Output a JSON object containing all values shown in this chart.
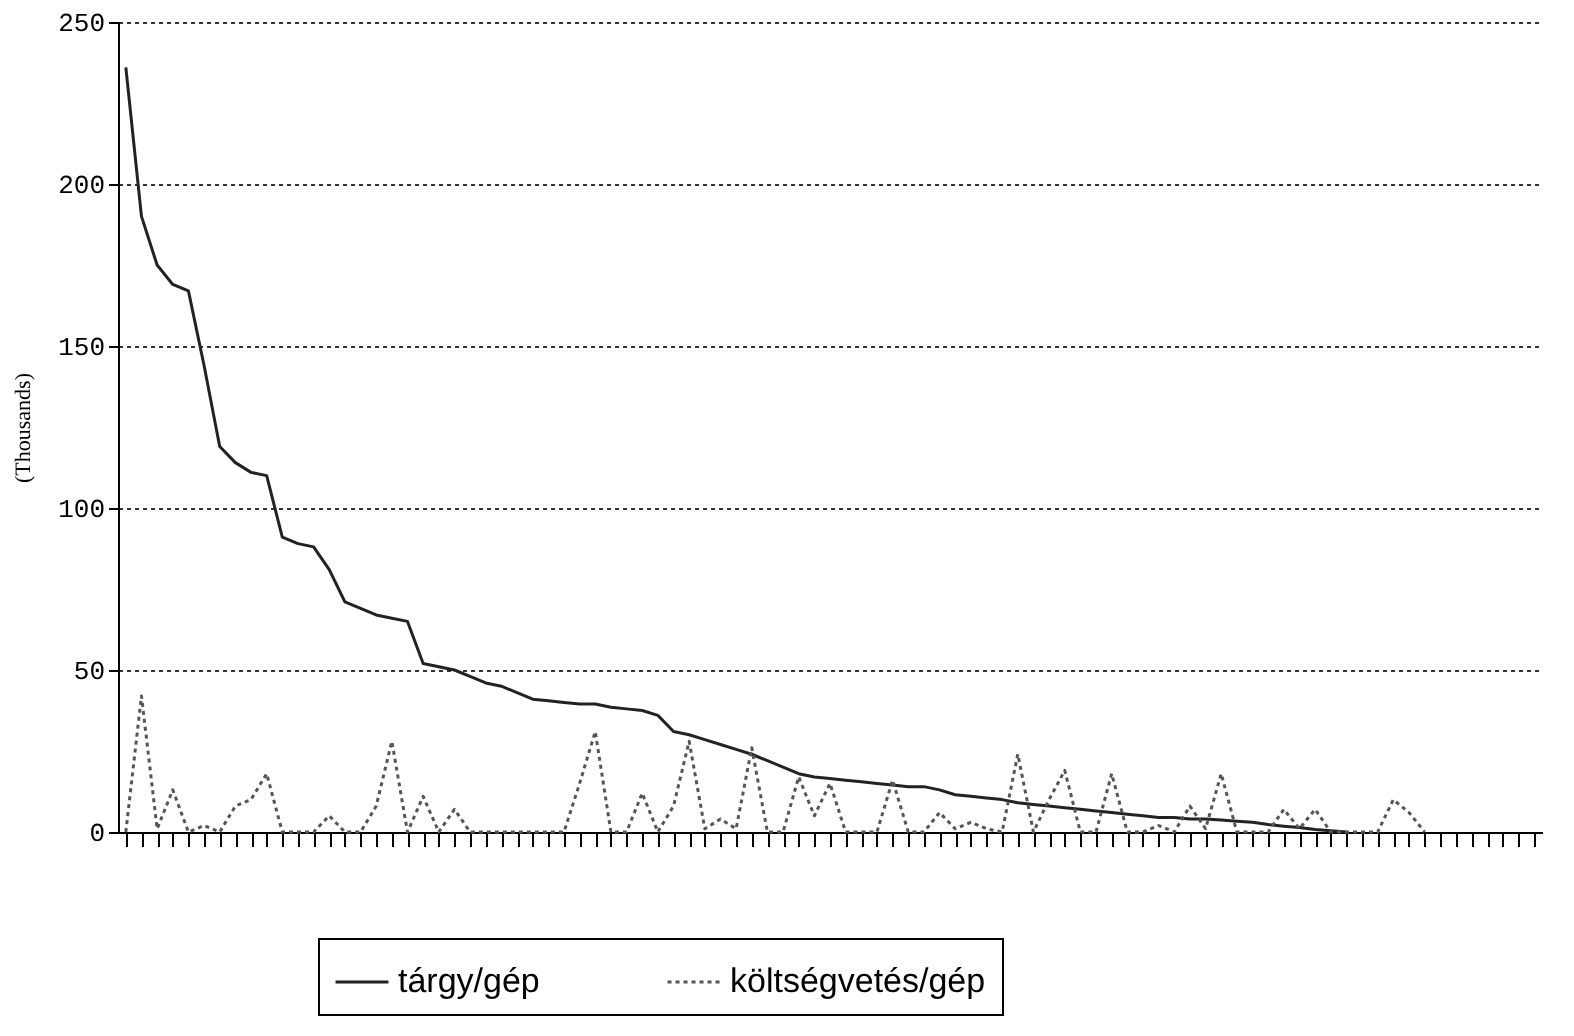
{
  "chart_data": {
    "type": "line",
    "ylabel": "(Thousands)",
    "categories": [
      null,
      null,
      null,
      null,
      null,
      null,
      null,
      null,
      null,
      null,
      null,
      null,
      null,
      null,
      null,
      null,
      null,
      null,
      null,
      null,
      null,
      null,
      null,
      null,
      null,
      null,
      null,
      null,
      null,
      null,
      null,
      null,
      null,
      null,
      null,
      null,
      null,
      null,
      null,
      null,
      null,
      null,
      null,
      null,
      null,
      null,
      null,
      null,
      null,
      null,
      null,
      null,
      null,
      null,
      null,
      null,
      null,
      null,
      null,
      null,
      null,
      null,
      null,
      null,
      null,
      null,
      null,
      null,
      null,
      null,
      null,
      null,
      null,
      null,
      null,
      null,
      null,
      null,
      null,
      null,
      null,
      null,
      null,
      null,
      null,
      null,
      null,
      null,
      null,
      null,
      null
    ],
    "series": [
      {
        "name": "tárgy/gép",
        "color": "#222222",
        "line_style": "solid",
        "values": [
          236,
          190,
          175,
          169,
          167,
          144,
          119,
          114,
          111,
          110,
          91,
          89,
          88,
          81,
          71,
          69,
          67,
          66,
          65,
          52,
          51,
          50,
          48,
          46,
          45,
          43,
          41,
          40.5,
          40,
          39.5,
          39.5,
          38.5,
          38,
          37.5,
          36,
          31,
          30,
          28.5,
          27,
          25.5,
          24,
          22,
          20,
          18,
          17,
          16.5,
          16,
          15.5,
          15,
          14.5,
          14,
          14,
          13,
          11.5,
          11,
          10.5,
          10,
          9,
          8.5,
          8,
          7.5,
          7,
          6.5,
          6,
          5.5,
          5,
          4.5,
          4.5,
          4,
          4,
          3.7,
          3.3,
          3,
          2.3,
          1.8,
          1.4,
          0.8,
          0.4,
          0,
          null,
          null,
          null,
          null,
          null,
          null,
          null,
          null,
          null,
          null,
          null,
          null
        ]
      },
      {
        "name": "költségvetés/gép",
        "color": "#555555",
        "line_style": "dotted",
        "values": [
          0,
          42,
          1,
          13,
          0,
          2,
          0,
          8,
          10,
          18,
          0,
          0,
          0,
          5,
          0,
          0,
          8,
          28,
          0,
          11,
          0,
          7,
          0,
          0,
          0,
          0,
          0,
          0,
          0,
          15,
          31,
          0,
          0,
          12,
          0,
          8,
          28,
          1,
          4,
          1,
          26,
          0,
          0,
          17,
          5,
          15,
          0,
          0,
          0,
          16,
          0,
          0,
          6,
          1,
          3,
          1,
          0,
          24,
          0,
          10,
          19,
          0,
          0,
          18,
          0,
          0,
          2,
          0,
          8,
          1,
          18,
          0,
          0,
          0,
          7,
          1,
          7,
          0,
          0,
          0,
          0,
          10,
          6,
          0,
          null,
          null,
          null,
          null,
          null,
          null,
          null
        ]
      }
    ],
    "ylim": [
      0,
      250
    ],
    "yticks": [
      0,
      50,
      100,
      150,
      200,
      250
    ],
    "grid": "y",
    "legend": "bottom",
    "tick_labels": "y"
  }
}
